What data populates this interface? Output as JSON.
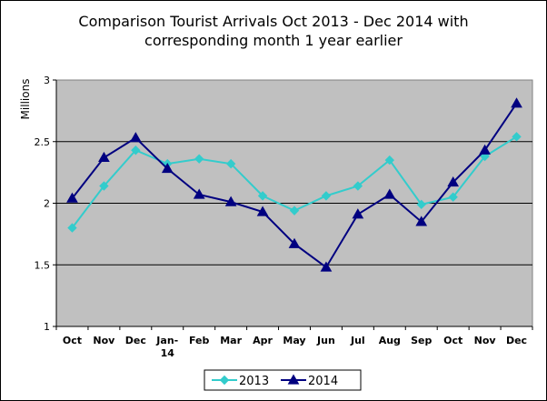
{
  "chart_data": {
    "type": "line",
    "title_line1": "Comparison Tourist Arrivals Oct 2013 - Dec 2014 with",
    "title_line2": "corresponding month 1 year earlier",
    "ylabel": "Millions",
    "xlabel": "",
    "ylim": [
      1,
      3
    ],
    "yticks": [
      "1",
      "1.5",
      "2",
      "2.5",
      "3"
    ],
    "categories": [
      "Oct",
      "Nov",
      "Dec",
      "Jan-14",
      "Feb",
      "Mar",
      "Apr",
      "May",
      "Jun",
      "Jul",
      "Aug",
      "Sep",
      "Oct",
      "Nov",
      "Dec"
    ],
    "category_labels": [
      [
        "Oct"
      ],
      [
        "Nov"
      ],
      [
        "Dec"
      ],
      [
        "Jan-",
        "14"
      ],
      [
        "Feb"
      ],
      [
        "Mar"
      ],
      [
        "Apr"
      ],
      [
        "May"
      ],
      [
        "Jun"
      ],
      [
        "Jul"
      ],
      [
        "Aug"
      ],
      [
        "Sep"
      ],
      [
        "Oct"
      ],
      [
        "Nov"
      ],
      [
        "Dec"
      ]
    ],
    "grid": true,
    "legend_position": "bottom",
    "plot_background": "#c0c0c0",
    "series": [
      {
        "name": "2013",
        "color": "#33cccc",
        "marker": "diamond",
        "values": [
          1.8,
          2.14,
          2.43,
          2.32,
          2.36,
          2.32,
          2.06,
          1.94,
          2.06,
          2.14,
          2.35,
          1.99,
          2.05,
          2.38,
          2.54
        ]
      },
      {
        "name": "2014",
        "color": "#000080",
        "marker": "triangle",
        "values": [
          2.04,
          2.37,
          2.53,
          2.28,
          2.07,
          2.01,
          1.93,
          1.67,
          1.48,
          1.91,
          2.07,
          1.85,
          2.17,
          2.43,
          2.81
        ]
      }
    ]
  }
}
